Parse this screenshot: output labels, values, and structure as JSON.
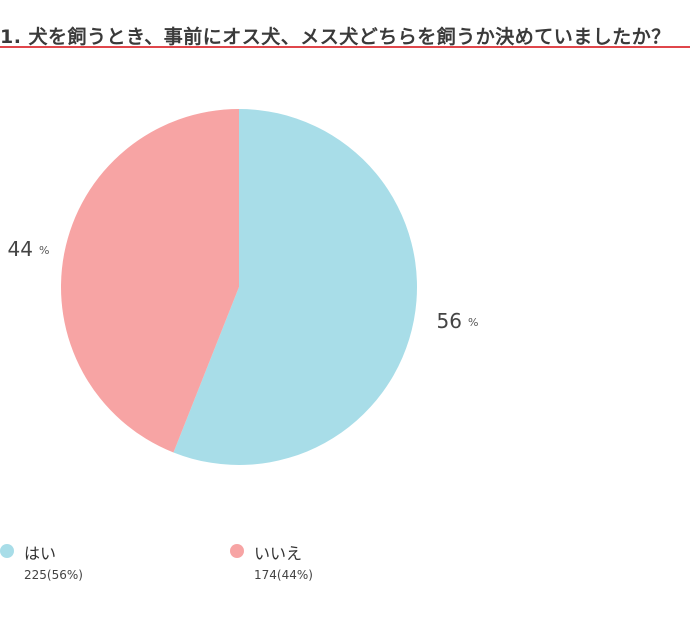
{
  "title": "1. 犬を飼うとき、事前にオス犬、メス犬どちらを飼うか決めていましたか？",
  "colors": {
    "accent_rule": "#e0464b"
  },
  "chart_data": {
    "type": "pie",
    "title": "1. 犬を飼うとき、事前にオス犬、メス犬どちらを飼うか決めていましたか？",
    "start_angle_deg": 0,
    "direction": "clockwise",
    "slices": [
      {
        "label": "はい",
        "count": 225,
        "percent": 56,
        "count_label": "225(56%)",
        "percent_label": "56",
        "color": "#a8dde8"
      },
      {
        "label": "いいえ",
        "count": 174,
        "percent": 44,
        "count_label": "174(44%)",
        "percent_label": "44",
        "color": "#f7a4a4"
      }
    ],
    "percent_unit": "%",
    "legend_position": "bottom-left"
  }
}
